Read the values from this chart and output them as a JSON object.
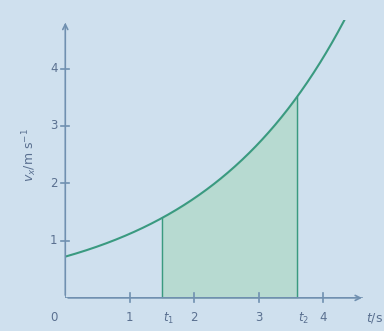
{
  "background_color": "#cfe0ee",
  "curve_color": "#3a9a80",
  "fill_color": "#b0d8c8",
  "fill_alpha": 0.75,
  "axis_color": "#7090b0",
  "label_color": "#5a7090",
  "xlim": [
    0,
    4.65
  ],
  "ylim": [
    0,
    4.85
  ],
  "xticks": [
    1,
    2,
    3,
    4
  ],
  "yticks": [
    1,
    2,
    3,
    4
  ],
  "t1": 1.5,
  "t2": 3.6,
  "curve_a": 0.72,
  "curve_b": 0.44,
  "curve_xstart": 0.0,
  "curve_xend": 4.55,
  "tick_fs": 8.5,
  "axis_label_fs": 9.0
}
